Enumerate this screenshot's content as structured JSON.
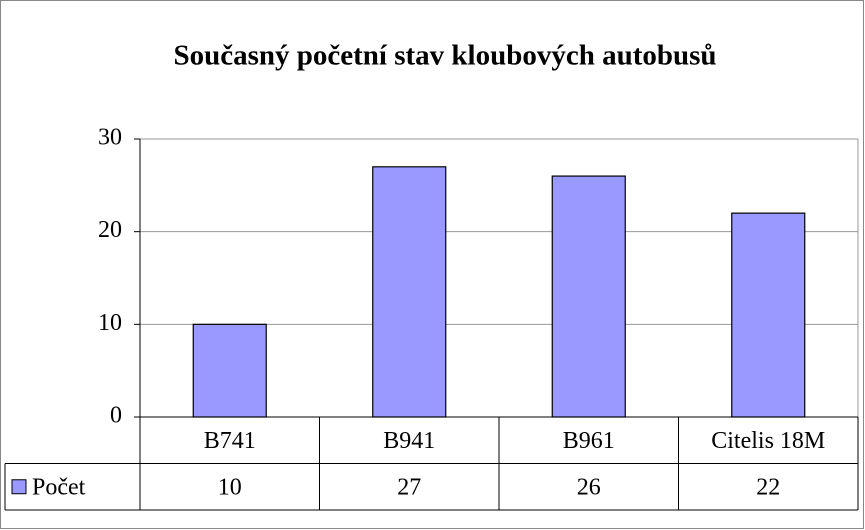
{
  "chart_data": {
    "type": "bar",
    "title": "Současný početní stav kloubových autobusů",
    "categories": [
      "B741",
      "B941",
      "B961",
      "Citelis 18M"
    ],
    "series": [
      {
        "name": "Počet",
        "color": "#9999ff",
        "values": [
          10,
          27,
          26,
          22
        ]
      }
    ],
    "ylim": [
      0,
      30
    ],
    "yticks": [
      0,
      10,
      20,
      30
    ],
    "grid": true,
    "legend": "data-table"
  }
}
